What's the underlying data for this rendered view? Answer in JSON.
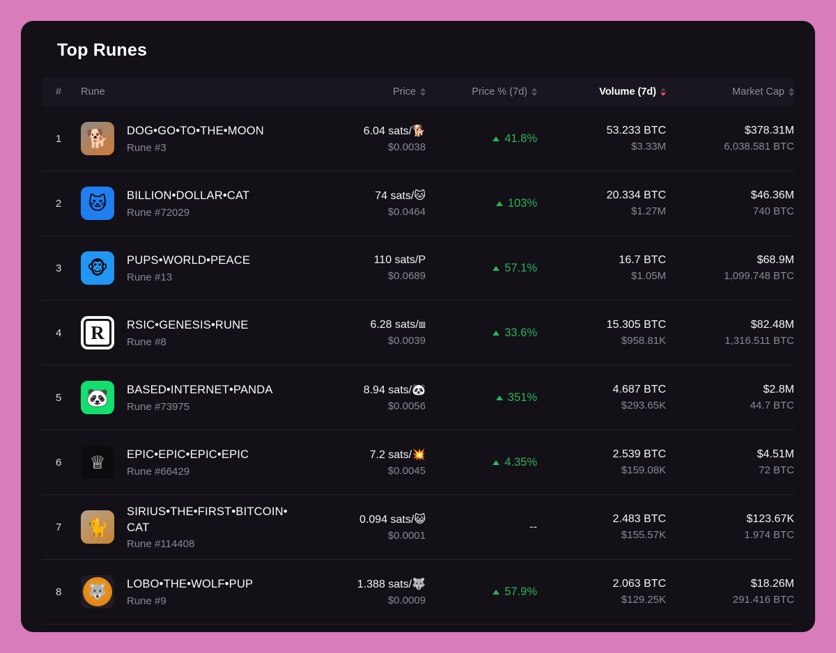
{
  "colors": {
    "page_background": "#d87cba",
    "card_background": "#131018",
    "header_band": "#19161f",
    "primary_text": "#f5f5f6",
    "secondary_text": "#8b8894",
    "positive_green": "#2cb454",
    "active_sort_pink": "#f2436b"
  },
  "header": {
    "title": "Top Runes"
  },
  "table": {
    "columns": [
      {
        "key": "rank",
        "label": "#",
        "sortable": false
      },
      {
        "key": "rune",
        "label": "Rune",
        "sortable": false
      },
      {
        "key": "price",
        "label": "Price",
        "sortable": true
      },
      {
        "key": "change",
        "label": "Price % (7d)",
        "sortable": true
      },
      {
        "key": "volume",
        "label": "Volume (7d)",
        "sortable": true,
        "sorted": "desc"
      },
      {
        "key": "mcap",
        "label": "Market Cap",
        "sortable": true
      }
    ],
    "rows": [
      {
        "rank": "1",
        "name": "DOG•GO•TO•THE•MOON",
        "sub": "Rune #3",
        "icon": {
          "name": "dog-go-to-the-moon-logo",
          "glyph": "🐕",
          "bg": "#8e8b85",
          "bg2": "#d07a36"
        },
        "price": "6.04 sats/🐕",
        "price_usd": "$0.0038",
        "change": "41.8%",
        "change_dir": "up",
        "volume_btc": "53.233 BTC",
        "volume_usd": "$3.33M",
        "mcap_usd": "$378.31M",
        "mcap_btc": "6,038.581 BTC"
      },
      {
        "rank": "2",
        "name": "BILLION•DOLLAR•CAT",
        "sub": "Rune #72029",
        "icon": {
          "name": "billion-dollar-cat-logo",
          "glyph": "🐱",
          "bg": "#1f7ef0"
        },
        "price": "74 sats/🐱",
        "price_usd": "$0.0464",
        "change": "103%",
        "change_dir": "up",
        "volume_btc": "20.334 BTC",
        "volume_usd": "$1.27M",
        "mcap_usd": "$46.36M",
        "mcap_btc": "740 BTC"
      },
      {
        "rank": "3",
        "name": "PUPS•WORLD•PEACE",
        "sub": "Rune #13",
        "icon": {
          "name": "pups-world-peace-logo",
          "glyph": "🐵",
          "bg": "#2196f3"
        },
        "price": "110 sats/P",
        "price_usd": "$0.0689",
        "change": "57.1%",
        "change_dir": "up",
        "volume_btc": "16.7 BTC",
        "volume_usd": "$1.05M",
        "mcap_usd": "$68.9M",
        "mcap_btc": "1,099.748 BTC"
      },
      {
        "rank": "4",
        "name": "RSIC•GENESIS•RUNE",
        "sub": "Rune #8",
        "icon": {
          "name": "rsic-genesis-rune-logo",
          "glyph": "R",
          "bg": "#ffffff",
          "fg": "#141414",
          "frame": true
        },
        "price": "6.28 sats/⧈",
        "price_usd": "$0.0039",
        "change": "33.6%",
        "change_dir": "up",
        "volume_btc": "15.305 BTC",
        "volume_usd": "$958.81K",
        "mcap_usd": "$82.48M",
        "mcap_btc": "1,316.511 BTC"
      },
      {
        "rank": "5",
        "name": "BASED•INTERNET•PANDA",
        "sub": "Rune #73975",
        "icon": {
          "name": "based-internet-panda-logo",
          "glyph": "🐼",
          "bg": "#12df6d"
        },
        "price": "8.94 sats/🐼",
        "price_usd": "$0.0056",
        "change": "351%",
        "change_dir": "up",
        "volume_btc": "4.687 BTC",
        "volume_usd": "$293.65K",
        "mcap_usd": "$2.8M",
        "mcap_btc": "44.7 BTC"
      },
      {
        "rank": "6",
        "name": "EPIC•EPIC•EPIC•EPIC",
        "sub": "Rune #66429",
        "icon": {
          "name": "epic-epic-epic-epic-logo",
          "glyph": "♕",
          "bg": "#0c0b0e",
          "fg": "#ffffff"
        },
        "price": "7.2 sats/💥",
        "price_usd": "$0.0045",
        "change": "4.35%",
        "change_dir": "up",
        "volume_btc": "2.539 BTC",
        "volume_usd": "$159.08K",
        "mcap_usd": "$4.51M",
        "mcap_btc": "72 BTC"
      },
      {
        "rank": "7",
        "name": "SIRIUS•THE•FIRST•BITCOIN•CAT",
        "sub": "Rune #114408",
        "icon": {
          "name": "sirius-the-first-bitcoin-cat-logo",
          "glyph": "🐈",
          "bg": "#b3a08c",
          "bg2": "#c9862e"
        },
        "price": "0.094 sats/😺",
        "price_usd": "$0.0001",
        "change": "--",
        "change_dir": "none",
        "volume_btc": "2.483 BTC",
        "volume_usd": "$155.57K",
        "mcap_usd": "$123.67K",
        "mcap_btc": "1.974 BTC"
      },
      {
        "rank": "8",
        "name": "LOBO•THE•WOLF•PUP",
        "sub": "Rune #9",
        "icon": {
          "name": "lobo-the-wolf-pup-logo",
          "glyph": "🐺",
          "bg": "#201c25",
          "circle_bg": "#f5991e"
        },
        "price": "1.388 sats/🐺",
        "price_usd": "$0.0009",
        "change": "57.9%",
        "change_dir": "up",
        "volume_btc": "2.063 BTC",
        "volume_usd": "$129.25K",
        "mcap_usd": "$18.26M",
        "mcap_btc": "291.416 BTC"
      }
    ]
  }
}
